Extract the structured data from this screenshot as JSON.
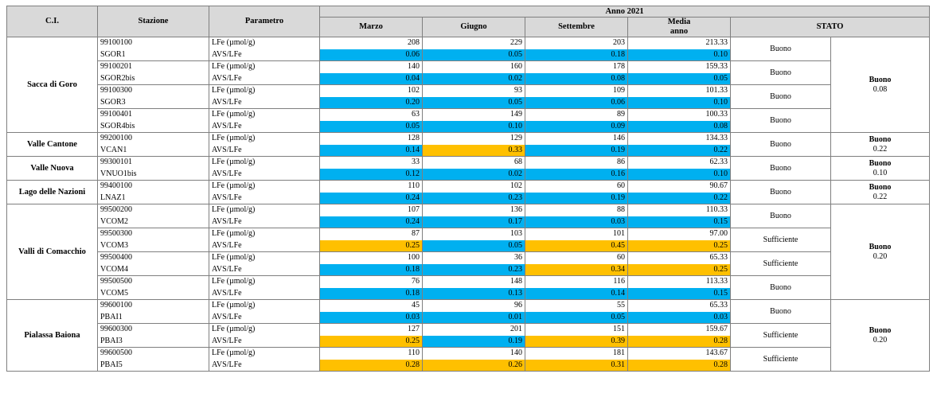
{
  "headers": {
    "ci": "C.I.",
    "stazione": "Stazione",
    "parametro": "Parametro",
    "anno": "Anno 2021",
    "marzo": "Marzo",
    "giugno": "Giugno",
    "settembre": "Settembre",
    "media1": "Media",
    "media2": "anno",
    "stato": "STATO"
  },
  "colors": {
    "blue": "#00b0f0",
    "yellow": "#ffc000",
    "header": "#d9d9d9"
  },
  "groups": [
    {
      "name": "Sacca di Goro",
      "stato": "Buono",
      "stato_value": "0.08",
      "stations": [
        {
          "code": "99100100",
          "sigla": "SGOR1",
          "stato": "Buono",
          "lfe": [
            "208",
            "229",
            "203",
            "213.33"
          ],
          "avs": [
            "0.06",
            "0.05",
            "0.18",
            "0.10"
          ],
          "avs_colors": [
            "blue",
            "blue",
            "blue",
            "blue"
          ]
        },
        {
          "code": "99100201",
          "sigla": "SGOR2bis",
          "stato": "Buono",
          "lfe": [
            "140",
            "160",
            "178",
            "159.33"
          ],
          "avs": [
            "0.04",
            "0.02",
            "0.08",
            "0.05"
          ],
          "avs_colors": [
            "blue",
            "blue",
            "blue",
            "blue"
          ]
        },
        {
          "code": "99100300",
          "sigla": "SGOR3",
          "stato": "Buono",
          "lfe": [
            "102",
            "93",
            "109",
            "101.33"
          ],
          "avs": [
            "0.20",
            "0.05",
            "0.06",
            "0.10"
          ],
          "avs_colors": [
            "blue",
            "blue",
            "blue",
            "blue"
          ]
        },
        {
          "code": "99100401",
          "sigla": "SGOR4bis",
          "stato": "Buono",
          "lfe": [
            "63",
            "149",
            "89",
            "100.33"
          ],
          "avs": [
            "0.05",
            "0.10",
            "0.09",
            "0.08"
          ],
          "avs_colors": [
            "blue",
            "blue",
            "blue",
            "blue"
          ]
        }
      ]
    },
    {
      "name": "Valle Cantone",
      "stato": "Buono",
      "stato_value": "0.22",
      "stations": [
        {
          "code": "99200100",
          "sigla": "VCAN1",
          "stato": "Buono",
          "lfe": [
            "128",
            "129",
            "146",
            "134.33"
          ],
          "avs": [
            "0.14",
            "0.33",
            "0.19",
            "0.22"
          ],
          "avs_colors": [
            "blue",
            "yellow",
            "blue",
            "blue"
          ]
        }
      ]
    },
    {
      "name": "Valle Nuova",
      "stato": "Buono",
      "stato_value": "0.10",
      "stations": [
        {
          "code": "99300101",
          "sigla": "VNUO1bis",
          "stato": "Buono",
          "lfe": [
            "33",
            "68",
            "86",
            "62.33"
          ],
          "avs": [
            "0.12",
            "0.02",
            "0.16",
            "0.10"
          ],
          "avs_colors": [
            "blue",
            "blue",
            "blue",
            "blue"
          ]
        }
      ]
    },
    {
      "name": "Lago delle Nazioni",
      "stato": "Buono",
      "stato_value": "0.22",
      "stations": [
        {
          "code": "99400100",
          "sigla": "LNAZ1",
          "stato": "Buono",
          "lfe": [
            "110",
            "102",
            "60",
            "90.67"
          ],
          "avs": [
            "0.24",
            "0.23",
            "0.19",
            "0.22"
          ],
          "avs_colors": [
            "blue",
            "blue",
            "blue",
            "blue"
          ]
        }
      ]
    },
    {
      "name": "Valli di Comacchio",
      "stato": "Buono",
      "stato_value": "0.20",
      "stations": [
        {
          "code": "99500200",
          "sigla": "VCOM2",
          "stato": "Buono",
          "lfe": [
            "107",
            "136",
            "88",
            "110.33"
          ],
          "avs": [
            "0.24",
            "0.17",
            "0.03",
            "0.15"
          ],
          "avs_colors": [
            "blue",
            "blue",
            "blue",
            "blue"
          ]
        },
        {
          "code": "99500300",
          "sigla": "VCOM3",
          "stato": "Sufficiente",
          "lfe": [
            "87",
            "103",
            "101",
            "97.00"
          ],
          "avs": [
            "0.25",
            "0.05",
            "0.45",
            "0.25"
          ],
          "avs_colors": [
            "yellow",
            "blue",
            "yellow",
            "yellow"
          ]
        },
        {
          "code": "99500400",
          "sigla": "VCOM4",
          "stato": "Sufficiente",
          "lfe": [
            "100",
            "36",
            "60",
            "65.33"
          ],
          "avs": [
            "0.18",
            "0.23",
            "0.34",
            "0.25"
          ],
          "avs_colors": [
            "blue",
            "blue",
            "yellow",
            "yellow"
          ]
        },
        {
          "code": "99500500",
          "sigla": "VCOM5",
          "stato": "Buono",
          "lfe": [
            "76",
            "148",
            "116",
            "113.33"
          ],
          "avs": [
            "0.18",
            "0.13",
            "0.14",
            "0.15"
          ],
          "avs_colors": [
            "blue",
            "blue",
            "blue",
            "blue"
          ]
        }
      ]
    },
    {
      "name": "Pialassa Baiona",
      "stato": "Buono",
      "stato_value": "0.20",
      "stations": [
        {
          "code": "99600100",
          "sigla": "PBAI1",
          "stato": "Buono",
          "lfe": [
            "45",
            "96",
            "55",
            "65.33"
          ],
          "avs": [
            "0.03",
            "0.01",
            "0.05",
            "0.03"
          ],
          "avs_colors": [
            "blue",
            "blue",
            "blue",
            "blue"
          ]
        },
        {
          "code": "99600300",
          "sigla": "PBAI3",
          "stato": "Sufficiente",
          "lfe": [
            "127",
            "201",
            "151",
            "159.67"
          ],
          "avs": [
            "0.25",
            "0.19",
            "0.39",
            "0.28"
          ],
          "avs_colors": [
            "yellow",
            "blue",
            "yellow",
            "yellow"
          ]
        },
        {
          "code": "99600500",
          "sigla": "PBAI5",
          "stato": "Sufficiente",
          "lfe": [
            "110",
            "140",
            "181",
            "143.67"
          ],
          "avs": [
            "0.28",
            "0.26",
            "0.31",
            "0.28"
          ],
          "avs_colors": [
            "yellow",
            "yellow",
            "yellow",
            "yellow"
          ]
        }
      ]
    }
  ],
  "param_labels": {
    "lfe": "LFe (µmol/g)",
    "avs": "AVS/LFe"
  }
}
